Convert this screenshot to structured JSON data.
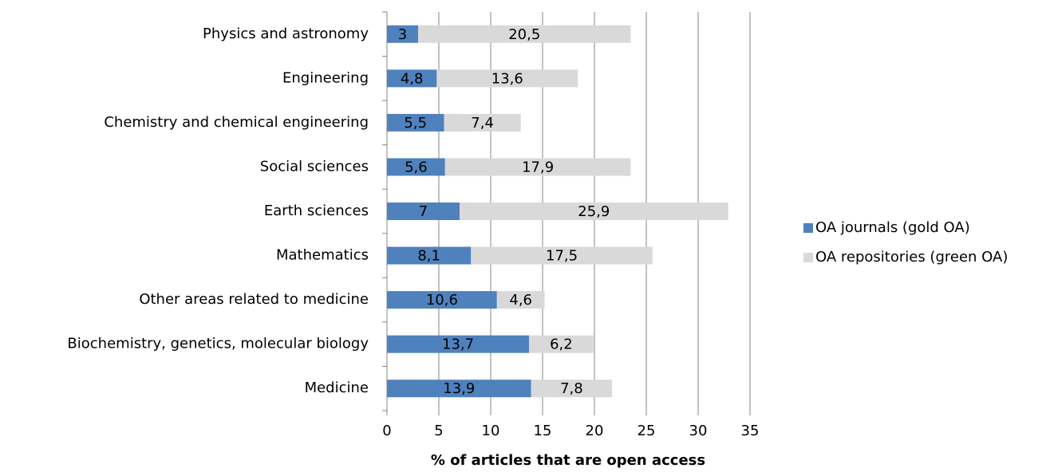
{
  "chart_data": {
    "type": "stacked-barh",
    "xlabel": "% of articles that are open access",
    "categories": [
      "Physics and astronomy",
      "Engineering",
      "Chemistry and chemical engineering",
      "Social sciences",
      "Earth sciences",
      "Mathematics",
      "Other areas related to medicine",
      "Biochemistry, genetics, molecular biology",
      "Medicine"
    ],
    "series": [
      {
        "name": "OA journals (gold OA)",
        "color": "#4f81bd",
        "values": [
          3,
          4.8,
          5.5,
          5.6,
          7,
          8.1,
          10.6,
          13.7,
          13.9
        ],
        "value_labels": [
          "3",
          "4,8",
          "5,5",
          "5,6",
          "7",
          "8,1",
          "10,6",
          "13,7",
          "13,9"
        ]
      },
      {
        "name": "OA repositories (green OA)",
        "color": "#d9d9d9",
        "values": [
          20.5,
          13.6,
          7.4,
          17.9,
          25.9,
          17.5,
          4.6,
          6.2,
          7.8
        ],
        "value_labels": [
          "20,5",
          "13,6",
          "7,4",
          "17,9",
          "25,9",
          "17,5",
          "4,6",
          "6,2",
          "7,8"
        ]
      }
    ],
    "xlim": [
      0,
      35
    ],
    "xticks": [
      0,
      5,
      10,
      15,
      20,
      25,
      30,
      35
    ],
    "grid": true,
    "legend": "right"
  }
}
